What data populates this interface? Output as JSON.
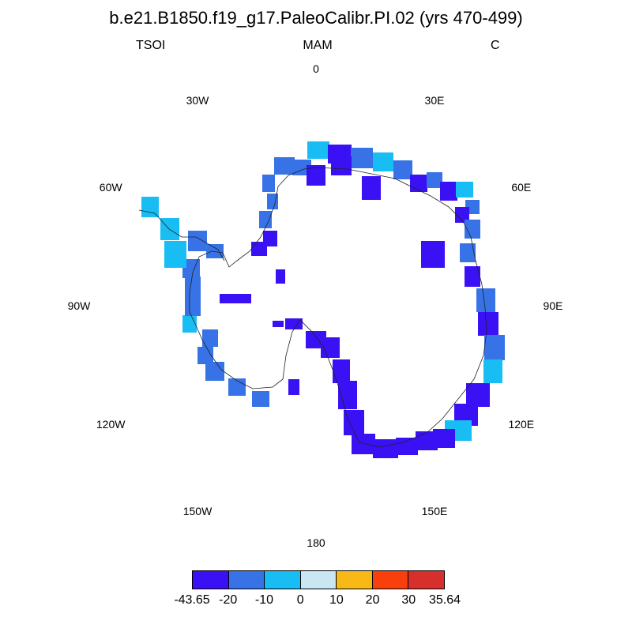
{
  "title": "b.e21.B1850.f19_g17.PaleoCalibr.PI.02 (yrs 470-499)",
  "variable": "TSOI",
  "season": "MAM",
  "units": "C",
  "longitude_labels": [
    "0",
    "30E",
    "60E",
    "90E",
    "120E",
    "150E",
    "180",
    "150W",
    "120W",
    "90W",
    "60W",
    "30W"
  ],
  "colorbar": {
    "colors": [
      "#3a10f5",
      "#3773e6",
      "#17bdf3",
      "#c9e6f3",
      "#f8b916",
      "#f83f0c",
      "#d7302c"
    ],
    "labels": [
      "-43.65",
      "-20",
      "-10",
      "0",
      "10",
      "20",
      "30",
      "35.64"
    ]
  }
}
